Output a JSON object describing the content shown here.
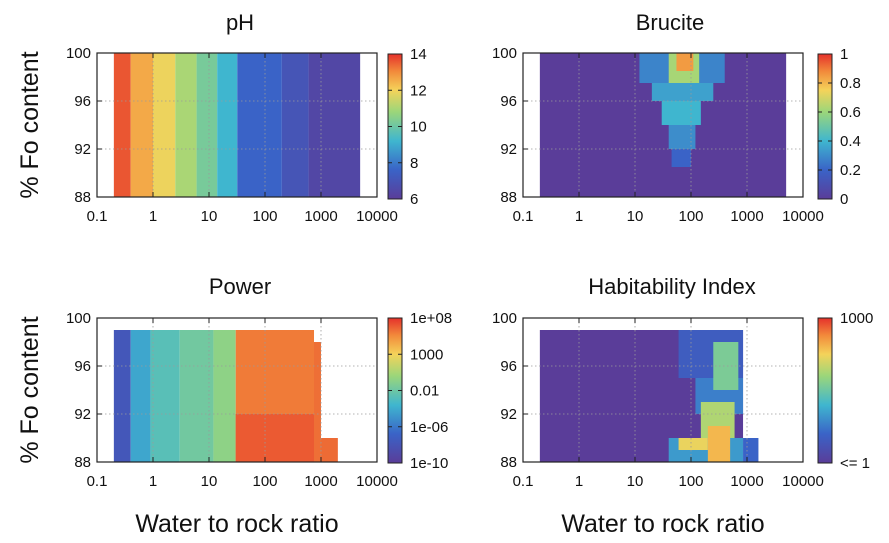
{
  "chart_data": [
    {
      "type": "heatmap",
      "title": "pH",
      "ylabel": "% Fo content",
      "xlabel": "",
      "x_scale": "log",
      "xlim": [
        0.1,
        10000
      ],
      "ylim": [
        88,
        100
      ],
      "x_ticks": [
        "0.1",
        "1",
        "10",
        "100",
        "1000",
        "10000"
      ],
      "y_ticks": [
        "100",
        "96",
        "92",
        "88"
      ],
      "colorbar": {
        "min": 6,
        "max": 14,
        "scale": "linear",
        "ticks": [
          "14",
          "12",
          "10",
          "8",
          "6"
        ]
      },
      "regions": [
        {
          "x_range": [
            0.2,
            0.4
          ],
          "y_range": [
            88,
            100
          ],
          "value": 13.6
        },
        {
          "x_range": [
            0.4,
            1.0
          ],
          "y_range": [
            88,
            100
          ],
          "value": 12.6
        },
        {
          "x_range": [
            1.0,
            2.5
          ],
          "y_range": [
            88,
            100
          ],
          "value": 11.9
        },
        {
          "x_range": [
            2.5,
            6.0
          ],
          "y_range": [
            88,
            100
          ],
          "value": 11.0
        },
        {
          "x_range": [
            6.0,
            14
          ],
          "y_range": [
            88,
            100
          ],
          "value": 10.2
        },
        {
          "x_range": [
            14,
            32
          ],
          "y_range": [
            88,
            100
          ],
          "value": 9.2
        },
        {
          "x_range": [
            32,
            200
          ],
          "y_range": [
            88,
            100
          ],
          "value": 7.6
        },
        {
          "x_range": [
            200,
            600
          ],
          "y_range": [
            88,
            100
          ],
          "value": 7.0
        },
        {
          "x_range": [
            600,
            5000
          ],
          "y_range": [
            88,
            100
          ],
          "value": 6.4
        }
      ]
    },
    {
      "type": "heatmap",
      "title": "Brucite",
      "ylabel": "",
      "xlabel": "",
      "x_scale": "log",
      "xlim": [
        0.1,
        10000
      ],
      "ylim": [
        88,
        100
      ],
      "x_ticks": [
        "0.1",
        "1",
        "10",
        "100",
        "1000",
        "10000"
      ],
      "y_ticks": [
        "100",
        "96",
        "92",
        "88"
      ],
      "colorbar": {
        "min": 0,
        "max": 1,
        "scale": "linear",
        "ticks": [
          "1",
          "0.8",
          "0.6",
          "0.4",
          "0.2",
          "0"
        ]
      },
      "regions": [
        {
          "x_range": [
            0.2,
            5000
          ],
          "y_range": [
            88,
            100
          ],
          "value": 0.0
        },
        {
          "x_range": [
            12,
            400
          ],
          "y_range": [
            97.5,
            100
          ],
          "value": 0.28
        },
        {
          "x_range": [
            20,
            250
          ],
          "y_range": [
            96,
            97.5
          ],
          "value": 0.35
        },
        {
          "x_range": [
            30,
            150
          ],
          "y_range": [
            94,
            96
          ],
          "value": 0.4
        },
        {
          "x_range": [
            40,
            120
          ],
          "y_range": [
            92,
            94
          ],
          "value": 0.3
        },
        {
          "x_range": [
            45,
            100
          ],
          "y_range": [
            90.5,
            92
          ],
          "value": 0.2
        },
        {
          "x_range": [
            40,
            140
          ],
          "y_range": [
            97.5,
            100
          ],
          "value": 0.62
        },
        {
          "x_range": [
            55,
            110
          ],
          "y_range": [
            98.5,
            100
          ],
          "value": 0.85
        }
      ]
    },
    {
      "type": "heatmap",
      "title": "Power",
      "ylabel": "% Fo content",
      "xlabel": "Water to rock ratio",
      "x_scale": "log",
      "xlim": [
        0.1,
        10000
      ],
      "ylim": [
        88,
        100
      ],
      "x_ticks": [
        "0.1",
        "1",
        "10",
        "100",
        "1000",
        "10000"
      ],
      "y_ticks": [
        "100",
        "96",
        "92",
        "88"
      ],
      "colorbar": {
        "min": -10,
        "max": 8,
        "scale": "log10",
        "ticks": [
          "1e+08",
          "1000",
          "0.01",
          "1e-06",
          "1e-10"
        ]
      },
      "regions": [
        {
          "x_range": [
            0.2,
            0.4
          ],
          "y_range": [
            88,
            99
          ],
          "value": -7.5
        },
        {
          "x_range": [
            0.4,
            0.9
          ],
          "y_range": [
            88,
            99
          ],
          "value": -3.5
        },
        {
          "x_range": [
            0.9,
            3
          ],
          "y_range": [
            88,
            99
          ],
          "value": -1.8
        },
        {
          "x_range": [
            3,
            12
          ],
          "y_range": [
            88,
            99
          ],
          "value": -0.8
        },
        {
          "x_range": [
            12,
            30
          ],
          "y_range": [
            88,
            99
          ],
          "value": 0.3
        },
        {
          "x_range": [
            30,
            750
          ],
          "y_range": [
            88,
            99
          ],
          "value": 6.2
        },
        {
          "x_range": [
            30,
            750
          ],
          "y_range": [
            88,
            92
          ],
          "value": 7.0
        },
        {
          "x_range": [
            750,
            1000
          ],
          "y_range": [
            88,
            98
          ],
          "value": 6.5
        },
        {
          "x_range": [
            1000,
            2000
          ],
          "y_range": [
            88,
            90
          ],
          "value": 6.6
        }
      ]
    },
    {
      "type": "heatmap",
      "title": "Habitability Index",
      "ylabel": "",
      "xlabel": "Water to rock ratio",
      "x_scale": "log",
      "xlim": [
        0.1,
        10000
      ],
      "ylim": [
        88,
        100
      ],
      "x_ticks": [
        "0.1",
        "1",
        "10",
        "100",
        "1000",
        "10000"
      ],
      "y_ticks": [
        "100",
        "96",
        "92",
        "88"
      ],
      "colorbar": {
        "min": 0,
        "max": 3,
        "scale": "log10",
        "ticks": [
          "1000",
          "<= 1"
        ]
      },
      "regions": [
        {
          "x_range": [
            0.2,
            850
          ],
          "y_range": [
            88,
            99
          ],
          "value": 0.0
        },
        {
          "x_range": [
            60,
            850
          ],
          "y_range": [
            95,
            99
          ],
          "value": 0.5
        },
        {
          "x_range": [
            120,
            850
          ],
          "y_range": [
            92,
            95
          ],
          "value": 0.8
        },
        {
          "x_range": [
            40,
            850
          ],
          "y_range": [
            88,
            90
          ],
          "value": 1.0
        },
        {
          "x_range": [
            850,
            1600
          ],
          "y_range": [
            88,
            90
          ],
          "value": 0.6
        },
        {
          "x_range": [
            250,
            700
          ],
          "y_range": [
            94,
            98
          ],
          "value": 1.6
        },
        {
          "x_range": [
            150,
            600
          ],
          "y_range": [
            90,
            93
          ],
          "value": 1.9
        },
        {
          "x_range": [
            60,
            200
          ],
          "y_range": [
            89,
            90
          ],
          "value": 2.2
        },
        {
          "x_range": [
            200,
            500
          ],
          "y_range": [
            88,
            91
          ],
          "value": 2.4
        }
      ]
    }
  ]
}
